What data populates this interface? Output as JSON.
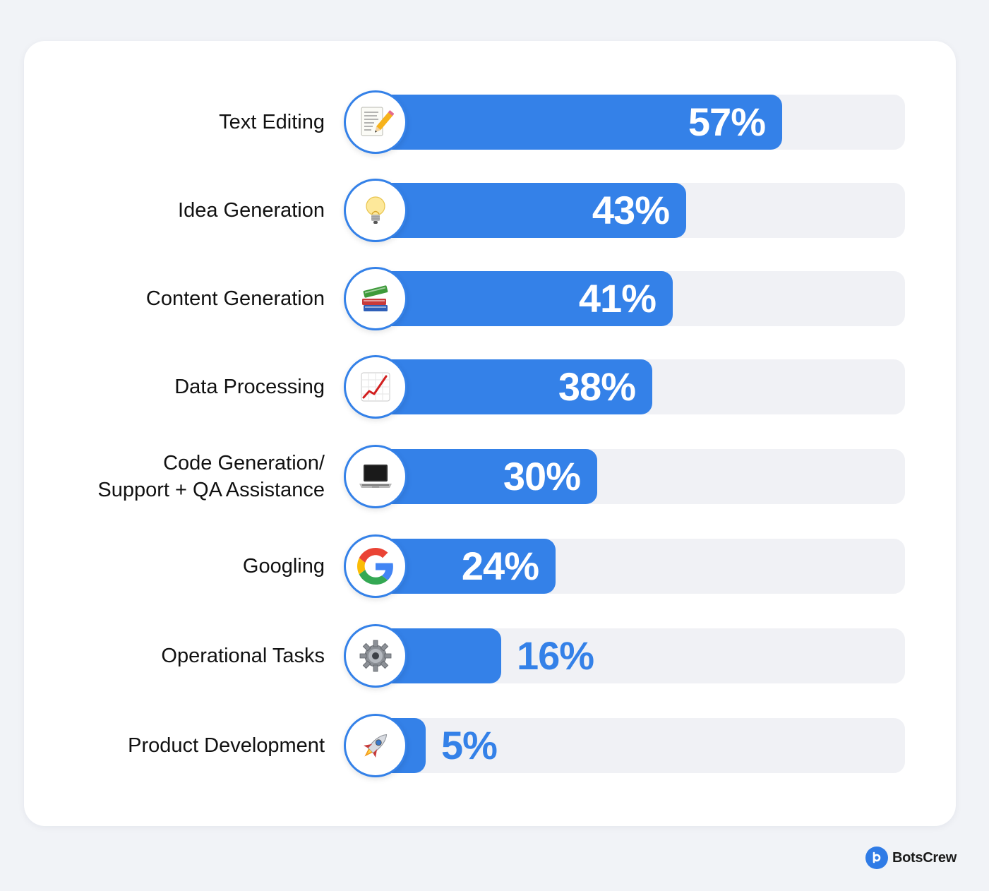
{
  "chart_data": {
    "type": "bar",
    "orientation": "horizontal",
    "categories": [
      "Text Editing",
      "Idea Generation",
      "Content Generation",
      "Data Processing",
      "Code Generation/\nSupport + QA Assistance",
      "Googling",
      "Operational Tasks",
      "Product Development"
    ],
    "values": [
      57,
      43,
      41,
      38,
      30,
      24,
      16,
      5
    ],
    "value_labels": [
      "57%",
      "43%",
      "41%",
      "38%",
      "30%",
      "24%",
      "16%",
      "5%"
    ],
    "icons": [
      "memo-pencil-icon",
      "light-bulb-icon",
      "books-icon",
      "chart-increasing-icon",
      "laptop-icon",
      "google-g-icon",
      "gear-icon",
      "rocket-icon"
    ],
    "xlim": [
      0,
      100
    ],
    "unit": "%",
    "title": "",
    "xlabel": "",
    "ylabel": "",
    "grid": false,
    "legend": "none"
  },
  "colors": {
    "bar": "#3481e8",
    "track": "#f0f1f5",
    "card": "#ffffff",
    "background": "#f1f3f7",
    "label_text": "#111111"
  },
  "brand": {
    "name": "BotsCrew",
    "icon": "botscrew-logo-icon"
  }
}
